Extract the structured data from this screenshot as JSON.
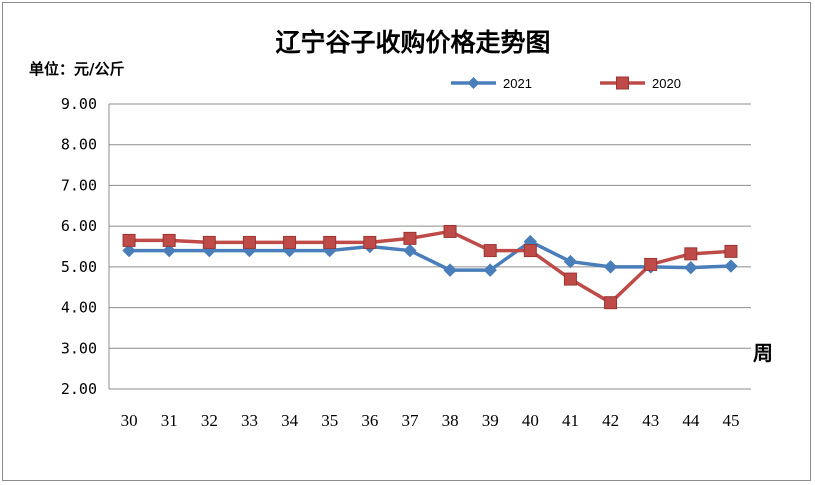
{
  "chart_data": {
    "type": "line",
    "title": "辽宁谷子收购价格走势图",
    "ylabel": "单位：元/公斤",
    "xlabel": "周",
    "categories": [
      "30",
      "31",
      "32",
      "33",
      "34",
      "35",
      "36",
      "37",
      "38",
      "39",
      "40",
      "41",
      "42",
      "43",
      "44",
      "45"
    ],
    "ylim": [
      2,
      9
    ],
    "ytick_labels": [
      "2.00",
      "3.00",
      "4.00",
      "5.00",
      "6.00",
      "7.00",
      "8.00",
      "9.00"
    ],
    "grid": true,
    "legend_position": "top-right",
    "series": [
      {
        "name": "2021",
        "color": "#4a7ebb",
        "marker": "diamond",
        "values": [
          5.4,
          5.4,
          5.4,
          5.4,
          5.4,
          5.4,
          5.5,
          5.4,
          4.92,
          4.92,
          5.62,
          5.13,
          5.0,
          5.0,
          4.98,
          5.02
        ]
      },
      {
        "name": "2020",
        "color": "#be4b48",
        "marker": "square",
        "values": [
          5.65,
          5.65,
          5.6,
          5.6,
          5.6,
          5.6,
          5.6,
          5.7,
          5.87,
          5.4,
          5.4,
          4.7,
          4.12,
          5.06,
          5.32,
          5.38
        ]
      }
    ]
  }
}
